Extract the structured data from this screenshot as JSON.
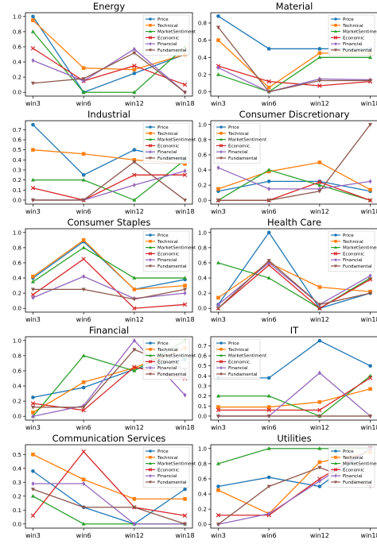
{
  "chart_data": [
    {
      "type": "line",
      "title": "Energy",
      "categories": [
        "win3",
        "win6",
        "win12",
        "win18"
      ],
      "ylim": [
        -0.05,
        1.05
      ],
      "yticks": [
        0.0,
        0.2,
        0.4,
        0.6,
        0.8,
        1.0
      ],
      "legend": "top-right",
      "series": [
        {
          "name": "Price",
          "values": [
            1.0,
            0.0,
            0.25,
            0.5
          ]
        },
        {
          "name": "Technical",
          "values": [
            0.95,
            0.32,
            0.3,
            0.5
          ]
        },
        {
          "name": "MarketSentiment",
          "values": [
            0.8,
            0.0,
            0.0,
            0.6
          ]
        },
        {
          "name": "Economic",
          "values": [
            0.58,
            0.15,
            0.35,
            0.1
          ]
        },
        {
          "name": "Financial",
          "values": [
            0.42,
            0.15,
            0.57,
            0.0
          ]
        },
        {
          "name": "Fundamental",
          "values": [
            0.12,
            0.18,
            0.52,
            0.0
          ]
        }
      ]
    },
    {
      "type": "line",
      "title": "Material",
      "categories": [
        "win3",
        "win6",
        "win12",
        "win18"
      ],
      "ylim": [
        -0.05,
        0.92
      ],
      "yticks": [
        0.0,
        0.2,
        0.4,
        0.6,
        0.8
      ],
      "legend": "top-right",
      "series": [
        {
          "name": "Price",
          "values": [
            0.88,
            0.5,
            0.5,
            0.5
          ]
        },
        {
          "name": "Technical",
          "values": [
            0.6,
            0.05,
            0.45,
            0.45
          ]
        },
        {
          "name": "MarketSentiment",
          "values": [
            0.2,
            0.0,
            0.4,
            0.4
          ]
        },
        {
          "name": "Economic",
          "values": [
            0.3,
            0.12,
            0.07,
            0.12
          ]
        },
        {
          "name": "Financial",
          "values": [
            0.28,
            0.0,
            0.15,
            0.14
          ]
        },
        {
          "name": "Fundamental",
          "values": [
            0.75,
            0.0,
            0.13,
            0.13
          ]
        }
      ]
    },
    {
      "type": "line",
      "title": "Industrial",
      "categories": [
        "win3",
        "win6",
        "win12",
        "win18"
      ],
      "ylim": [
        -0.04,
        0.79
      ],
      "yticks": [
        0.0,
        0.1,
        0.2,
        0.3,
        0.4,
        0.5,
        0.6,
        0.7
      ],
      "legend": "top-right",
      "series": [
        {
          "name": "Price",
          "values": [
            0.75,
            0.25,
            0.5,
            0.4
          ]
        },
        {
          "name": "Technical",
          "values": [
            0.5,
            0.46,
            0.4,
            0.36
          ]
        },
        {
          "name": "MarketSentiment",
          "values": [
            0.2,
            0.2,
            0.0,
            0.4
          ]
        },
        {
          "name": "Economic",
          "values": [
            0.12,
            0.0,
            0.25,
            0.25
          ]
        },
        {
          "name": "Financial",
          "values": [
            0.0,
            0.0,
            0.15,
            0.29
          ]
        },
        {
          "name": "Fundamental",
          "values": [
            0.0,
            0.0,
            0.38,
            0.0
          ]
        }
      ]
    },
    {
      "type": "line",
      "title": "Consumer Discretionary",
      "categories": [
        "win3",
        "win6",
        "win12",
        "win18"
      ],
      "ylim": [
        -0.05,
        1.05
      ],
      "yticks": [
        0.0,
        0.2,
        0.4,
        0.6,
        0.8,
        1.0
      ],
      "legend": "top-left",
      "series": [
        {
          "name": "Price",
          "values": [
            0.12,
            0.25,
            0.25,
            0.12
          ]
        },
        {
          "name": "Technical",
          "values": [
            0.15,
            0.38,
            0.5,
            0.14
          ]
        },
        {
          "name": "MarketSentiment",
          "values": [
            0.0,
            0.4,
            0.2,
            0.0
          ]
        },
        {
          "name": "Economic",
          "values": [
            0.0,
            0.0,
            0.24,
            0.0
          ]
        },
        {
          "name": "Financial",
          "values": [
            0.43,
            0.15,
            0.15,
            0.25
          ]
        },
        {
          "name": "Fundamental",
          "values": [
            0.0,
            0.0,
            0.12,
            1.0
          ]
        }
      ]
    },
    {
      "type": "line",
      "title": "Consumer Staples",
      "categories": [
        "win3",
        "win6",
        "win12",
        "win18"
      ],
      "ylim": [
        -0.05,
        1.05
      ],
      "yticks": [
        0.0,
        0.2,
        0.4,
        0.6,
        0.8,
        1.0
      ],
      "legend": "top-right",
      "series": [
        {
          "name": "Price",
          "values": [
            0.4,
            0.88,
            0.25,
            0.38
          ]
        },
        {
          "name": "Technical",
          "values": [
            0.42,
            0.9,
            0.25,
            0.3
          ]
        },
        {
          "name": "MarketSentiment",
          "values": [
            0.35,
            0.8,
            0.4,
            0.4
          ]
        },
        {
          "name": "Economic",
          "values": [
            0.18,
            0.65,
            0.0,
            0.05
          ]
        },
        {
          "name": "Financial",
          "values": [
            0.14,
            0.42,
            0.13,
            0.2
          ]
        },
        {
          "name": "Fundamental",
          "values": [
            0.25,
            0.25,
            0.12,
            0.25
          ]
        }
      ]
    },
    {
      "type": "line",
      "title": "Health Care",
      "categories": [
        "win3",
        "win6",
        "win12",
        "win18"
      ],
      "ylim": [
        -0.05,
        1.05
      ],
      "yticks": [
        0.0,
        0.2,
        0.4,
        0.6,
        0.8,
        1.0
      ],
      "legend": "top-right",
      "series": [
        {
          "name": "Price",
          "values": [
            0.05,
            1.0,
            0.0,
            0.2
          ]
        },
        {
          "name": "Technical",
          "values": [
            0.14,
            0.6,
            0.28,
            0.22
          ]
        },
        {
          "name": "MarketSentiment",
          "values": [
            0.6,
            0.4,
            0.0,
            0.4
          ]
        },
        {
          "name": "Economic",
          "values": [
            0.0,
            0.57,
            0.0,
            0.38
          ]
        },
        {
          "name": "Financial",
          "values": [
            0.05,
            0.6,
            0.05,
            0.43
          ]
        },
        {
          "name": "Fundamental",
          "values": [
            0.0,
            0.63,
            0.05,
            0.2
          ]
        }
      ]
    },
    {
      "type": "line",
      "title": "Financial",
      "categories": [
        "win3",
        "win6",
        "win12",
        "win18"
      ],
      "ylim": [
        -0.05,
        1.05
      ],
      "yticks": [
        0.0,
        0.2,
        0.4,
        0.6,
        0.8,
        1.0
      ],
      "legend": "top-right",
      "series": [
        {
          "name": "Price",
          "values": [
            0.25,
            0.38,
            0.62,
            0.75
          ]
        },
        {
          "name": "Technical",
          "values": [
            0.05,
            0.45,
            0.64,
            0.9
          ]
        },
        {
          "name": "MarketSentiment",
          "values": [
            0.0,
            0.8,
            0.6,
            1.0
          ]
        },
        {
          "name": "Economic",
          "values": [
            0.17,
            0.08,
            0.65,
            0.5
          ]
        },
        {
          "name": "Financial",
          "values": [
            0.0,
            0.14,
            1.0,
            0.28
          ]
        },
        {
          "name": "Fundamental",
          "values": [
            0.12,
            0.12,
            0.88,
            0.62
          ]
        }
      ]
    },
    {
      "type": "line",
      "title": "IT",
      "categories": [
        "win3",
        "win6",
        "win12",
        "win18"
      ],
      "ylim": [
        -0.04,
        0.79
      ],
      "yticks": [
        0.0,
        0.1,
        0.2,
        0.3,
        0.4,
        0.5,
        0.6,
        0.7
      ],
      "legend": "top-left",
      "series": [
        {
          "name": "Price",
          "values": [
            0.38,
            0.38,
            0.75,
            0.5
          ]
        },
        {
          "name": "Technical",
          "values": [
            0.09,
            0.09,
            0.14,
            0.27
          ]
        },
        {
          "name": "MarketSentiment",
          "values": [
            0.2,
            0.2,
            0.0,
            0.4
          ]
        },
        {
          "name": "Economic",
          "values": [
            0.06,
            0.06,
            0.06,
            0.38
          ]
        },
        {
          "name": "Financial",
          "values": [
            0.0,
            0.0,
            0.43,
            0.0
          ]
        },
        {
          "name": "Fundamental",
          "values": [
            0.0,
            0.0,
            0.0,
            0.0
          ]
        }
      ]
    },
    {
      "type": "line",
      "title": "Communication Services",
      "categories": [
        "win3",
        "win6",
        "win12",
        "win18"
      ],
      "ylim": [
        -0.03,
        0.57
      ],
      "yticks": [
        0.0,
        0.1,
        0.2,
        0.3,
        0.4,
        0.5
      ],
      "legend": "top-right",
      "series": [
        {
          "name": "Price",
          "values": [
            0.38,
            0.12,
            0.0,
            0.25
          ]
        },
        {
          "name": "Technical",
          "values": [
            0.5,
            0.32,
            0.18,
            0.18
          ]
        },
        {
          "name": "MarketSentiment",
          "values": [
            0.2,
            0.0,
            0.0,
            0.0
          ]
        },
        {
          "name": "Economic",
          "values": [
            0.06,
            0.52,
            0.12,
            0.06
          ]
        },
        {
          "name": "Financial",
          "values": [
            0.29,
            0.29,
            0.0,
            0.0
          ]
        },
        {
          "name": "Fundamental",
          "values": [
            0.25,
            0.12,
            0.12,
            0.0
          ]
        }
      ]
    },
    {
      "type": "line",
      "title": "Utilities",
      "categories": [
        "win3",
        "win6",
        "win12",
        "win18"
      ],
      "ylim": [
        -0.05,
        1.05
      ],
      "yticks": [
        0.0,
        0.2,
        0.4,
        0.6,
        0.8,
        1.0
      ],
      "legend": "top-right",
      "series": [
        {
          "name": "Price",
          "values": [
            0.5,
            0.62,
            0.5,
            1.0
          ]
        },
        {
          "name": "Technical",
          "values": [
            0.45,
            0.14,
            0.82,
            0.95
          ]
        },
        {
          "name": "MarketSentiment",
          "values": [
            0.8,
            1.0,
            1.0,
            1.0
          ]
        },
        {
          "name": "Economic",
          "values": [
            0.12,
            0.12,
            0.6,
            1.0
          ]
        },
        {
          "name": "Financial",
          "values": [
            0.0,
            0.14,
            0.57,
            1.0
          ]
        },
        {
          "name": "Fundamental",
          "values": [
            0.0,
            0.5,
            0.75,
            0.5
          ]
        }
      ]
    }
  ],
  "series_styles": [
    {
      "color": "#1f77b4",
      "marker": "circle"
    },
    {
      "color": "#ff7f0e",
      "marker": "square"
    },
    {
      "color": "#2ca02c",
      "marker": "triangle-up"
    },
    {
      "color": "#d62728",
      "marker": "x"
    },
    {
      "color": "#9467bd",
      "marker": "diamond"
    },
    {
      "color": "#8c564b",
      "marker": "triangle-down"
    }
  ]
}
